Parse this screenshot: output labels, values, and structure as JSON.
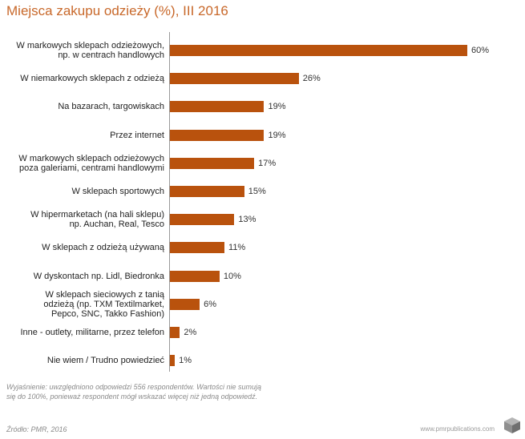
{
  "chart_data": {
    "type": "bar",
    "orientation": "horizontal",
    "title": "Miejsca zakupu odzieży (%), III 2016",
    "xlim": [
      0,
      60
    ],
    "grid": false,
    "categories": [
      [
        "W markowych sklepach odzieżowych,",
        "np. w centrach handlowych"
      ],
      [
        "W niemarkowych sklepach z odzieżą"
      ],
      [
        "Na bazarach, targowiskach"
      ],
      [
        "Przez internet"
      ],
      [
        "W markowych sklepach odzieżowych",
        "poza galeriami, centrami handlowymi"
      ],
      [
        "W sklepach sportowych"
      ],
      [
        "W hipermarketach (na hali sklepu)",
        "np. Auchan, Real, Tesco"
      ],
      [
        "W sklepach z odzieżą używaną"
      ],
      [
        "W dyskontach np. Lidl, Biedronka"
      ],
      [
        "W sklepach sieciowych z tanią",
        "odzieżą (np. TXM Textilmarket,",
        "Pepco, SNC, Takko Fashion)"
      ],
      [
        "Inne - outlety, militarne, przez  telefon"
      ],
      [
        "Nie wiem / Trudno powiedzieć"
      ]
    ],
    "values": [
      60,
      26,
      19,
      19,
      17,
      15,
      13,
      11,
      10,
      6,
      2,
      1
    ],
    "value_labels": [
      "60%",
      "26%",
      "19%",
      "19%",
      "17%",
      "15%",
      "13%",
      "11%",
      "10%",
      "6%",
      "2%",
      "1%"
    ]
  },
  "note": "Wyjaśnienie: uwzględniono odpowiedzi 556 respondentów. Wartości nie sumują się do 100%, ponieważ respondent mógł wskazać więcej niż jedną odpowiedź.",
  "source": "Źródło: PMR, 2016",
  "website": "www.pmrpublications.com",
  "colors": {
    "bar": "#b9520d",
    "title": "#c8682a",
    "axis": "#9a9a9a"
  },
  "logo_icon": "cube-logo-icon"
}
